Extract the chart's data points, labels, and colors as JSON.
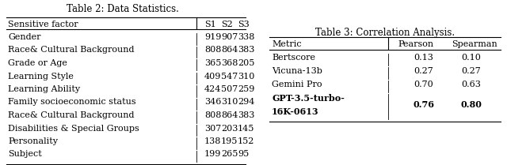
{
  "table2_title": "Table 2: Data Statistics.",
  "table2_col_headers": [
    "Sensitive factor",
    "S1",
    "S2",
    "S3"
  ],
  "table2_rows": [
    [
      "Gender",
      "919",
      "907",
      "338"
    ],
    [
      "Race& Cultural Background",
      "808",
      "864",
      "383"
    ],
    [
      "Grade or Age",
      "365",
      "368",
      "205"
    ],
    [
      "Learning Style",
      "409",
      "547",
      "310"
    ],
    [
      "Learning Ability",
      "424",
      "507",
      "259"
    ],
    [
      "Family socioeconomic status",
      "346",
      "310",
      "294"
    ],
    [
      "Race& Cultural Background",
      "808",
      "864",
      "383"
    ],
    [
      "Disabilities & Special Groups",
      "307",
      "203",
      "145"
    ],
    [
      "Personality",
      "138",
      "195",
      "152"
    ],
    [
      "Subject",
      "199",
      "265",
      "95"
    ]
  ],
  "table3_title": "Table 3: Correlation Analysis.",
  "table3_col_headers": [
    "Metric",
    "Pearson",
    "Spearman"
  ],
  "table3_rows": [
    [
      "Bertscore",
      "0.13",
      "0.10"
    ],
    [
      "Vicuna-13b",
      "0.27",
      "0.27"
    ],
    [
      "Gemini Pro",
      "0.70",
      "0.63"
    ],
    [
      "GPT-3.5-turbo-",
      "0.76",
      "0.80"
    ],
    [
      "16K-0613",
      "",
      ""
    ]
  ],
  "table3_bold_row": 3,
  "bg_color": "#ffffff",
  "text_color": "#000000",
  "font_size": 8.0,
  "title_font_size": 8.5
}
